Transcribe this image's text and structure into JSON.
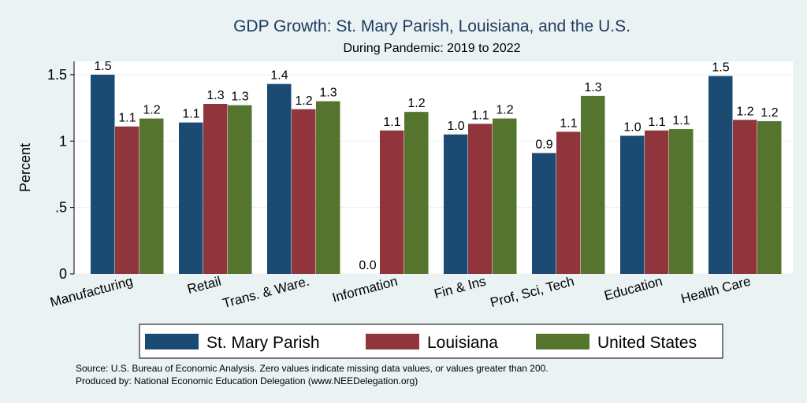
{
  "chart_data": {
    "type": "bar",
    "title": "GDP Growth: St. Mary Parish, Louisiana, and the U.S.",
    "subtitle": "During Pandemic: 2019 to 2022",
    "ylabel": "Percent",
    "xlabel": "",
    "ylim": [
      0,
      1.6
    ],
    "yticks": [
      0,
      0.5,
      1,
      1.5
    ],
    "ytick_labels": [
      "0",
      ".5",
      "1",
      "1.5"
    ],
    "grid": true,
    "legend_position": "bottom",
    "categories": [
      "Manufacturing",
      "Retail",
      "Trans. & Ware.",
      "Information",
      "Fin & Ins",
      "Prof, Sci, Tech",
      "Education",
      "Health Care"
    ],
    "series": [
      {
        "name": "St. Mary Parish",
        "color": "#1b4a72",
        "values": [
          1.5,
          1.14,
          1.43,
          0.0,
          1.05,
          0.91,
          1.04,
          1.49
        ],
        "labels": [
          "1.5",
          "1.1",
          "1.4",
          "0.0",
          "1.0",
          "0.9",
          "1.0",
          "1.5"
        ]
      },
      {
        "name": "Louisiana",
        "color": "#90353b",
        "values": [
          1.11,
          1.28,
          1.24,
          1.08,
          1.13,
          1.07,
          1.08,
          1.16
        ],
        "labels": [
          "1.1",
          "1.3",
          "1.2",
          "1.1",
          "1.1",
          "1.1",
          "1.1",
          "1.2"
        ]
      },
      {
        "name": "United States",
        "color": "#55752f",
        "values": [
          1.17,
          1.27,
          1.3,
          1.22,
          1.17,
          1.34,
          1.09,
          1.15
        ],
        "labels": [
          "1.2",
          "1.3",
          "1.3",
          "1.2",
          "1.2",
          "1.3",
          "1.1",
          "1.2"
        ]
      }
    ]
  },
  "footer": {
    "source": "Source: U.S. Bureau of Economic Analysis. Zero values indicate missing data values, or values greater than 200.",
    "produced_by": "Produced by: National Economic Education Delegation (www.NEEDelegation.org)"
  }
}
